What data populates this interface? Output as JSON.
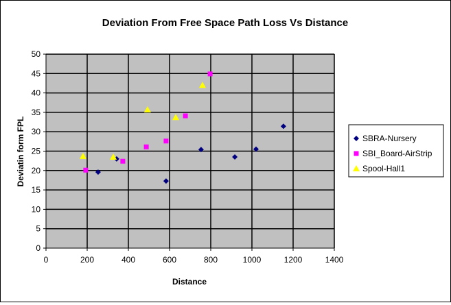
{
  "chart_data": {
    "type": "scatter",
    "title": "Deviation From Free Space Path Loss Vs Distance",
    "xlabel": "Distance",
    "ylabel": "Deviatin form FPL",
    "xlim": [
      0,
      1400
    ],
    "ylim": [
      0,
      50
    ],
    "xticks": [
      0,
      200,
      400,
      600,
      800,
      1000,
      1200,
      1400
    ],
    "yticks": [
      0,
      5,
      10,
      15,
      20,
      25,
      30,
      35,
      40,
      45,
      50
    ],
    "grid": true,
    "legend_position": "right",
    "series": [
      {
        "name": "SBRA-Nursery",
        "marker": "diamond",
        "color": "#000080",
        "points": [
          [
            253,
            19.6
          ],
          [
            343,
            23.0
          ],
          [
            583,
            17.3
          ],
          [
            753,
            25.4
          ],
          [
            917,
            23.5
          ],
          [
            1020,
            25.5
          ],
          [
            1153,
            31.4
          ]
        ]
      },
      {
        "name": "SBI_Board-AirStrip",
        "marker": "square",
        "color": "#FF00FF",
        "points": [
          [
            193,
            20.1
          ],
          [
            373,
            22.4
          ],
          [
            487,
            26.1
          ],
          [
            583,
            27.6
          ],
          [
            677,
            34.1
          ],
          [
            797,
            44.9
          ]
        ]
      },
      {
        "name": "Spool-Hall1",
        "marker": "triangle",
        "color": "#FFFF00",
        "points": [
          [
            180,
            23.7
          ],
          [
            327,
            23.5
          ],
          [
            493,
            35.7
          ],
          [
            630,
            33.7
          ],
          [
            760,
            42.0
          ]
        ]
      }
    ]
  }
}
